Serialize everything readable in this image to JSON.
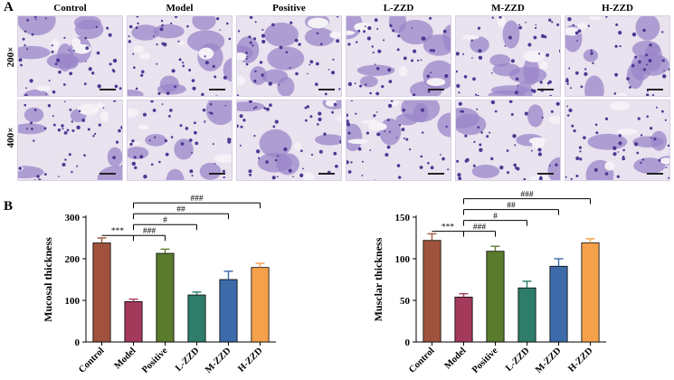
{
  "figure": {
    "panel_a_label": "A",
    "panel_b_label": "B",
    "row_labels": [
      "200×",
      "400×"
    ],
    "column_headers": [
      "Control",
      "Model",
      "Positive",
      "L-ZZD",
      "M-ZZD",
      "H-ZZD"
    ],
    "histology_colors": {
      "background": "#e9e2ef",
      "tissue": "#9a86c8",
      "nuclei": "#4b3a93",
      "lumen": "#f4f1f7"
    }
  },
  "chart_data": [
    {
      "type": "bar",
      "categories": [
        "Control",
        "Model",
        "Positive",
        "L-ZZD",
        "M-ZZD",
        "H-ZZD"
      ],
      "values": [
        238,
        97,
        213,
        113,
        150,
        179
      ],
      "errors": [
        12,
        6,
        10,
        7,
        20,
        10
      ],
      "colors": [
        "#a0523d",
        "#a33a5c",
        "#5a7a2e",
        "#2e7d6b",
        "#3d6aa8",
        "#f5a04a"
      ],
      "title": "",
      "xlabel": "",
      "ylabel": "Mucosal thickness",
      "ylim": [
        0,
        300
      ],
      "yticks": [
        0,
        100,
        200,
        300
      ],
      "grid": false,
      "annotations": [
        {
          "from": "Control",
          "to": "Model",
          "level": 1,
          "text": "***"
        },
        {
          "from": "Model",
          "to": "Positive",
          "level": 1,
          "text": "###"
        },
        {
          "from": "Model",
          "to": "L-ZZD",
          "level": 2,
          "text": "#"
        },
        {
          "from": "Model",
          "to": "M-ZZD",
          "level": 3,
          "text": "##"
        },
        {
          "from": "Model",
          "to": "H-ZZD",
          "level": 4,
          "text": "###"
        }
      ]
    },
    {
      "type": "bar",
      "categories": [
        "Control",
        "Model",
        "Positive",
        "L-ZZD",
        "M-ZZD",
        "H-ZZD"
      ],
      "values": [
        122,
        54,
        109,
        65,
        91,
        119
      ],
      "errors": [
        8,
        4,
        6,
        8,
        9,
        5
      ],
      "colors": [
        "#a0523d",
        "#a33a5c",
        "#5a7a2e",
        "#2e7d6b",
        "#3d6aa8",
        "#f5a04a"
      ],
      "title": "",
      "xlabel": "",
      "ylabel": "Musclar thickness",
      "ylim": [
        0,
        150
      ],
      "yticks": [
        0,
        50,
        100,
        150
      ],
      "grid": false,
      "annotations": [
        {
          "from": "Control",
          "to": "Model",
          "level": 1,
          "text": "***"
        },
        {
          "from": "Model",
          "to": "Positive",
          "level": 1,
          "text": "###"
        },
        {
          "from": "Model",
          "to": "L-ZZD",
          "level": 2,
          "text": "#"
        },
        {
          "from": "Model",
          "to": "M-ZZD",
          "level": 3,
          "text": "##"
        },
        {
          "from": "Model",
          "to": "H-ZZD",
          "level": 4,
          "text": "###"
        }
      ]
    }
  ]
}
